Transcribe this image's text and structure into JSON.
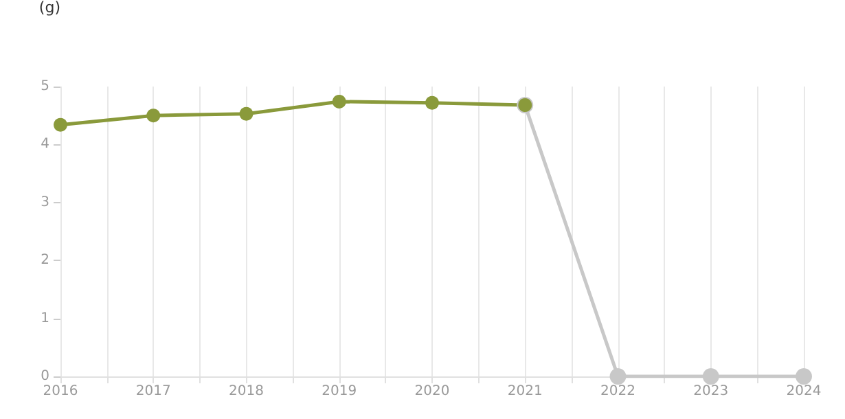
{
  "chart_data": {
    "type": "line",
    "ylabel": "(g)",
    "series": [
      {
        "color": "#c8c8c8",
        "x": [
          2021,
          2022,
          2023,
          2024
        ],
        "values": [
          4.68,
          0,
          0,
          0
        ]
      },
      {
        "color": "#8a9a3b",
        "x": [
          2016,
          2017,
          2018,
          2019,
          2020,
          2021
        ],
        "values": [
          4.34,
          4.5,
          4.53,
          4.74,
          4.72,
          4.68
        ]
      }
    ],
    "xlim": [
      2016,
      2024
    ],
    "xticks": [
      2016,
      {
        "value": 2016.5,
        "label": null
      },
      2017,
      {
        "value": 2017.5,
        "label": null
      },
      2018,
      {
        "value": 2018.5,
        "label": null
      },
      2019,
      {
        "value": 2019.5,
        "label": null
      },
      2020,
      {
        "value": 2020.5,
        "label": null
      },
      2021,
      {
        "value": 2021.5,
        "label": null
      },
      2022,
      {
        "value": 2022.5,
        "label": null
      },
      2023,
      {
        "value": 2023.5,
        "label": null
      },
      2024
    ],
    "ylim": [
      0,
      5
    ],
    "yticks": [
      0,
      1,
      2,
      3,
      4,
      5
    ],
    "grid": "x",
    "marker": "circle",
    "line_style": "solid"
  }
}
